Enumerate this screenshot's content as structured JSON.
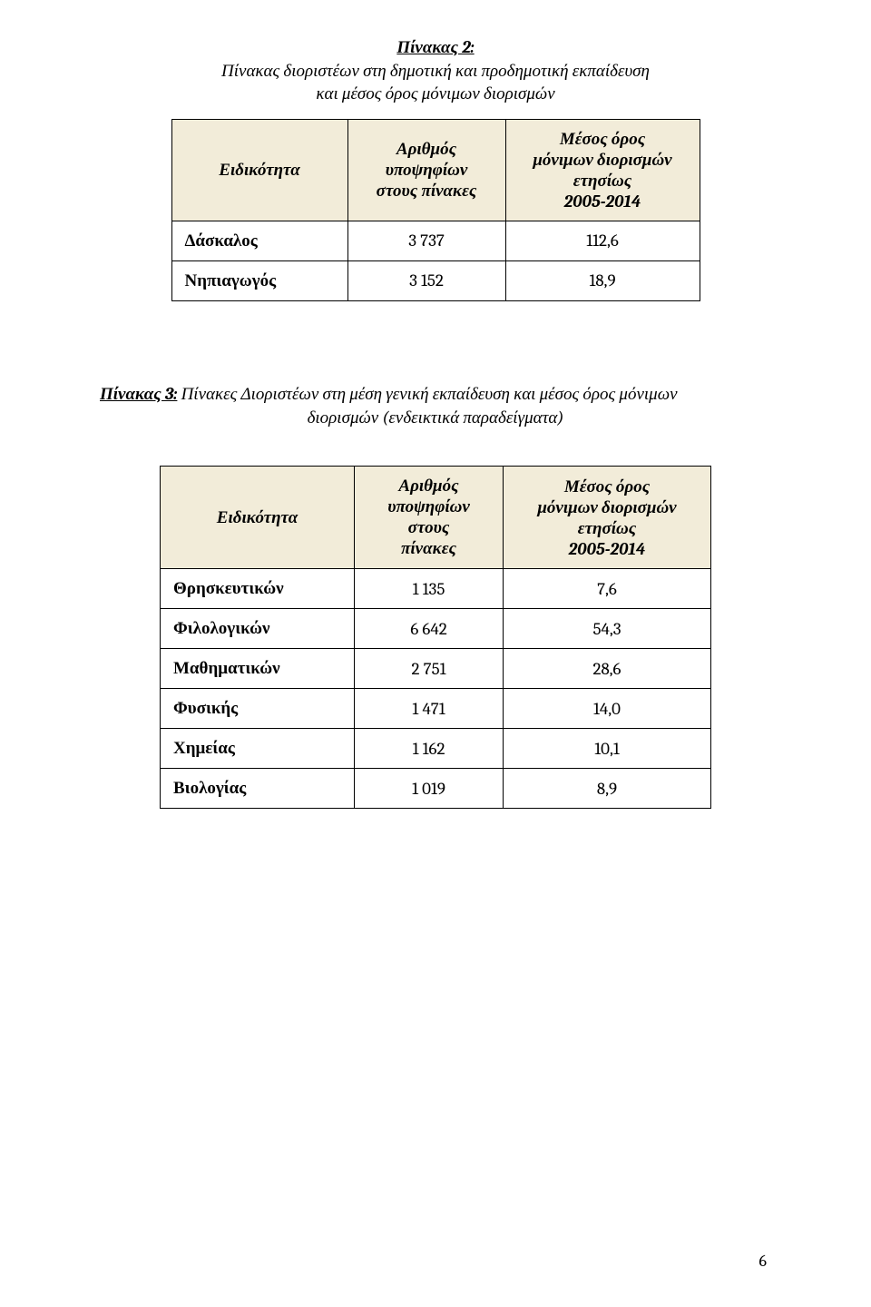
{
  "caption1": {
    "lead": "Πίνακας 2:",
    "line1": " Πίνακας διοριστέων στη δημοτική και προδημοτική εκπαίδευση",
    "line2": "και μέσος όρος μόνιμων διορισμών"
  },
  "caption2": {
    "lead": "Πίνακας 3:",
    "line1": " Πίνακες Διοριστέων στη μέση γενική εκπαίδευση και μέσος όρος μόνιμων",
    "line2": "διορισμών (ενδεικτικά παραδείγματα)"
  },
  "headers": {
    "col1": "Ειδικότητα",
    "col2_l1": "Αριθμός",
    "col2_l2": "υποψηφίων",
    "col2_l3a": "στους πίνακες",
    "col2_l3b_1": "στους",
    "col2_l3b_2": "πίνακες",
    "col3_l1": "Μέσος όρος",
    "col3_l2": "μόνιμων διορισμών",
    "col3_l3": "ετησίως",
    "col3_l4": "2005-2014"
  },
  "table1": {
    "rows": [
      {
        "label": "Δάσκαλος",
        "n": "3 737",
        "avg": "112,6"
      },
      {
        "label": "Νηπιαγωγός",
        "n": "3 152",
        "avg": "18,9"
      }
    ]
  },
  "table2": {
    "rows": [
      {
        "label": "Θρησκευτικών",
        "n": "1 135",
        "avg": "7,6"
      },
      {
        "label": "Φιλολογικών",
        "n": "6 642",
        "avg": "54,3"
      },
      {
        "label": "Μαθηματικών",
        "n": "2 751",
        "avg": "28,6"
      },
      {
        "label": "Φυσικής",
        "n": "1 471",
        "avg": "14,0"
      },
      {
        "label": "Χημείας",
        "n": "1 162",
        "avg": "10,1"
      },
      {
        "label": "Βιολογίας",
        "n": "1 019",
        "avg": "8,9"
      }
    ]
  },
  "pageNumber": "6"
}
